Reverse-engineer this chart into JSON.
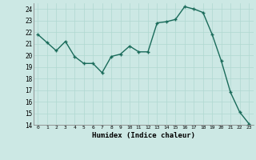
{
  "x": [
    0,
    1,
    2,
    3,
    4,
    5,
    6,
    7,
    8,
    9,
    10,
    11,
    12,
    13,
    14,
    15,
    16,
    17,
    18,
    19,
    20,
    21,
    22,
    23
  ],
  "y": [
    21.8,
    21.1,
    20.4,
    21.2,
    19.9,
    19.3,
    19.3,
    18.5,
    19.9,
    20.1,
    20.8,
    20.3,
    20.3,
    22.8,
    22.9,
    23.1,
    24.2,
    24.0,
    23.7,
    21.8,
    19.5,
    16.8,
    15.1,
    14.1
  ],
  "xlabel": "Humidex (Indice chaleur)",
  "line_color": "#1a6b5a",
  "marker_color": "#1a6b5a",
  "bg_color": "#cce8e4",
  "grid_color": "#b0d8d0",
  "ylim": [
    14,
    24.5
  ],
  "xlim": [
    -0.5,
    23.5
  ],
  "yticks": [
    14,
    15,
    16,
    17,
    18,
    19,
    20,
    21,
    22,
    23,
    24
  ],
  "xticks": [
    0,
    1,
    2,
    3,
    4,
    5,
    6,
    7,
    8,
    9,
    10,
    11,
    12,
    13,
    14,
    15,
    16,
    17,
    18,
    19,
    20,
    21,
    22,
    23
  ]
}
